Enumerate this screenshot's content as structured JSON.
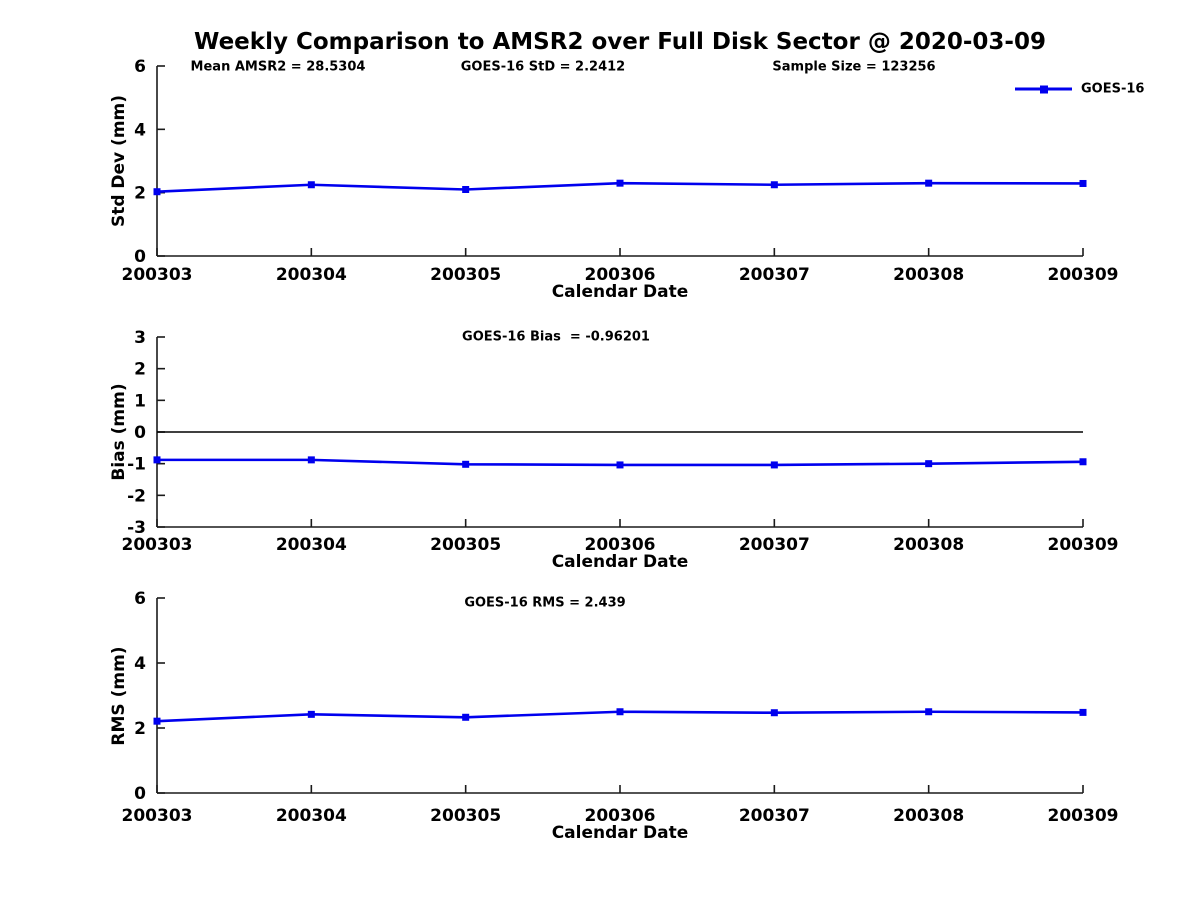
{
  "title": "Weekly Comparison to AMSR2 over Full Disk Sector @ 2020-03-09",
  "legend": {
    "label": "GOES-16"
  },
  "colors": {
    "line": "#0000EE",
    "axis": "#1a1a1a",
    "text": "#000000"
  },
  "chart_data": [
    {
      "type": "line",
      "annotations": [
        "Mean AMSR2 = 28.5304",
        "GOES-16 StD = 2.2412",
        "Sample Size = 123256"
      ],
      "categories": [
        "200303",
        "200304",
        "200305",
        "200306",
        "200307",
        "200308",
        "200309"
      ],
      "series": [
        {
          "name": "GOES-16",
          "values": [
            2.03,
            2.25,
            2.1,
            2.3,
            2.25,
            2.3,
            2.29
          ]
        }
      ],
      "xlabel": "Calendar Date",
      "ylabel": "Std Dev (mm)",
      "ylim": [
        0,
        6
      ],
      "yticks": [
        0,
        2,
        4,
        6
      ],
      "grid": false,
      "legend_position": "top-right"
    },
    {
      "type": "line",
      "annotations": [
        "GOES-16 Bias  = -0.96201"
      ],
      "categories": [
        "200303",
        "200304",
        "200305",
        "200306",
        "200307",
        "200308",
        "200309"
      ],
      "series": [
        {
          "name": "GOES-16",
          "values": [
            -0.88,
            -0.88,
            -1.02,
            -1.04,
            -1.04,
            -1.0,
            -0.94
          ]
        }
      ],
      "xlabel": "Calendar Date",
      "ylabel": "Bias (mm)",
      "ylim": [
        -3,
        3
      ],
      "yticks": [
        -3,
        -2,
        -1,
        0,
        1,
        2,
        3
      ],
      "zero_line": true,
      "grid": false
    },
    {
      "type": "line",
      "annotations": [
        "GOES-16 RMS = 2.439"
      ],
      "categories": [
        "200303",
        "200304",
        "200305",
        "200306",
        "200307",
        "200308",
        "200309"
      ],
      "series": [
        {
          "name": "GOES-16",
          "values": [
            2.21,
            2.42,
            2.33,
            2.5,
            2.47,
            2.5,
            2.48
          ]
        }
      ],
      "xlabel": "Calendar Date",
      "ylabel": "RMS (mm)",
      "ylim": [
        0,
        6
      ],
      "yticks": [
        0,
        2,
        4,
        6
      ],
      "grid": false
    }
  ]
}
